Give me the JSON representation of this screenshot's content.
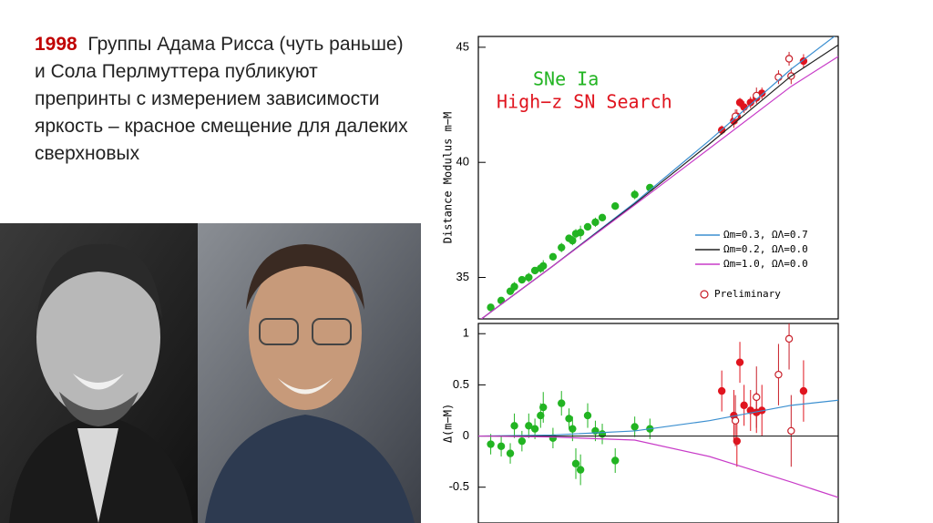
{
  "text": {
    "year": "1998",
    "body": "Группы Адама Рисса (чуть раньше) и Сола Перлмуттера публикуют препринты с измерением зависимости яркость – красное смещение для далеких сверхновых"
  },
  "chart_data": [
    {
      "type": "scatter",
      "y_label": "Distance Modulus m−M",
      "xscale": "log",
      "xlim": [
        0.01,
        2
      ],
      "ylim": [
        33.2,
        45.47
      ],
      "yticks": [
        35,
        40,
        45
      ],
      "series": [
        {
          "name": "SNe Ia",
          "kind": "points",
          "marker": "filled",
          "color": "#22b422",
          "x": [
            0.012,
            0.014,
            0.016,
            0.017,
            0.019,
            0.021,
            0.023,
            0.025,
            0.026,
            0.03,
            0.034,
            0.038,
            0.04,
            0.042,
            0.045,
            0.05,
            0.056,
            0.062,
            0.075,
            0.1,
            0.125
          ],
          "values": [
            33.7,
            34.0,
            34.4,
            34.6,
            34.9,
            35.0,
            35.3,
            35.4,
            35.5,
            35.9,
            36.3,
            36.7,
            36.6,
            36.9,
            36.95,
            37.2,
            37.4,
            37.6,
            38.1,
            38.6,
            38.9
          ],
          "errors": [
            0.15,
            0.15,
            0.15,
            0.2,
            0.15,
            0.2,
            0.15,
            0.2,
            0.25,
            0.15,
            0.2,
            0.15,
            0.2,
            0.2,
            0.3,
            0.15,
            0.2,
            0.15,
            0.15,
            0.2,
            0.15
          ]
        },
        {
          "name": "High−z SN Search",
          "kind": "points",
          "marker": "filled",
          "color": "#e0141e",
          "x": [
            0.36,
            0.43,
            0.45,
            0.47,
            0.5,
            0.55,
            0.6,
            0.65,
            1.2
          ],
          "values": [
            41.4,
            41.8,
            42.0,
            42.6,
            42.4,
            42.6,
            42.8,
            43.0,
            44.4
          ],
          "errors": [
            0.2,
            0.3,
            0.3,
            0.2,
            0.25,
            0.25,
            0.2,
            0.25,
            0.3
          ]
        },
        {
          "name": "Preliminary",
          "kind": "points",
          "marker": "open",
          "color": "#c81e28",
          "x": [
            0.44,
            0.6,
            0.83,
            0.97,
            1.0
          ],
          "values": [
            42.0,
            42.9,
            43.7,
            44.5,
            43.75
          ],
          "errors": [
            0.3,
            0.35,
            0.3,
            0.3,
            0.35
          ]
        },
        {
          "name": "Ωm=0.3, ΩΛ=0.7",
          "kind": "line",
          "color": "#3b8fd0",
          "x": [
            0.01,
            0.03,
            0.1,
            0.3,
            1,
            2
          ],
          "values": [
            33.1,
            35.5,
            38.25,
            40.95,
            44.05,
            45.6
          ]
        },
        {
          "name": "Ωm=0.2, ΩΛ=0.0",
          "kind": "line",
          "color": "#222222",
          "x": [
            0.01,
            0.03,
            0.1,
            0.3,
            1,
            2
          ],
          "values": [
            33.1,
            35.5,
            38.2,
            40.8,
            43.75,
            45.1
          ]
        },
        {
          "name": "Ωm=1.0, ΩΛ=0.0",
          "kind": "line",
          "color": "#c83cc8",
          "x": [
            0.01,
            0.03,
            0.1,
            0.3,
            1,
            2
          ],
          "values": [
            33.1,
            35.5,
            38.15,
            40.6,
            43.3,
            44.6
          ]
        }
      ]
    },
    {
      "type": "scatter",
      "y_label": "Δ(m−M)",
      "xscale": "log",
      "xlim": [
        0.01,
        2
      ],
      "ylim": [
        -0.85,
        1.1
      ],
      "yticks": [
        -0.5,
        0,
        0.5,
        1
      ],
      "series": [
        {
          "kind": "points",
          "marker": "filled",
          "color": "#22b422",
          "x": [
            0.012,
            0.014,
            0.016,
            0.017,
            0.019,
            0.021,
            0.023,
            0.025,
            0.026,
            0.03,
            0.034,
            0.038,
            0.04,
            0.042,
            0.045,
            0.05,
            0.056,
            0.062,
            0.075,
            0.1,
            0.125
          ],
          "values": [
            -0.08,
            -0.1,
            -0.17,
            0.1,
            -0.05,
            0.1,
            0.07,
            0.2,
            0.28,
            -0.02,
            0.32,
            0.17,
            0.07,
            -0.27,
            -0.33,
            0.2,
            0.05,
            0.02,
            -0.24,
            0.09,
            0.07
          ],
          "errors": [
            0.1,
            0.1,
            0.1,
            0.12,
            0.1,
            0.12,
            0.1,
            0.12,
            0.15,
            0.1,
            0.12,
            0.1,
            0.12,
            0.15,
            0.15,
            0.12,
            0.1,
            0.1,
            0.12,
            0.1,
            0.1
          ]
        },
        {
          "kind": "points",
          "marker": "filled",
          "color": "#e0141e",
          "x": [
            0.36,
            0.43,
            0.45,
            0.47,
            0.5,
            0.55,
            0.6,
            0.65,
            1.2
          ],
          "values": [
            0.44,
            0.2,
            -0.05,
            0.72,
            0.3,
            0.25,
            0.23,
            0.25,
            0.44
          ],
          "errors": [
            0.2,
            0.25,
            0.25,
            0.2,
            0.2,
            0.2,
            0.2,
            0.25,
            0.3
          ]
        },
        {
          "kind": "points",
          "marker": "open",
          "color": "#c81e28",
          "x": [
            0.44,
            0.6,
            0.83,
            0.97,
            1.0
          ],
          "values": [
            0.15,
            0.38,
            0.6,
            0.95,
            0.05
          ],
          "errors": [
            0.25,
            0.3,
            0.3,
            0.3,
            0.35
          ]
        },
        {
          "kind": "line",
          "color": "#3b8fd0",
          "x": [
            0.01,
            0.03,
            0.1,
            0.3,
            1,
            2
          ],
          "values": [
            0,
            0.01,
            0.05,
            0.15,
            0.3,
            0.35
          ]
        },
        {
          "kind": "line",
          "color": "#222222",
          "x": [
            0.01,
            0.03,
            0.1,
            0.3,
            1,
            2
          ],
          "values": [
            0,
            0,
            0,
            0,
            0,
            0
          ]
        },
        {
          "kind": "line",
          "color": "#c83cc8",
          "x": [
            0.01,
            0.03,
            0.1,
            0.3,
            1,
            2
          ],
          "values": [
            0,
            -0.01,
            -0.04,
            -0.2,
            -0.45,
            -0.6
          ]
        }
      ]
    }
  ]
}
